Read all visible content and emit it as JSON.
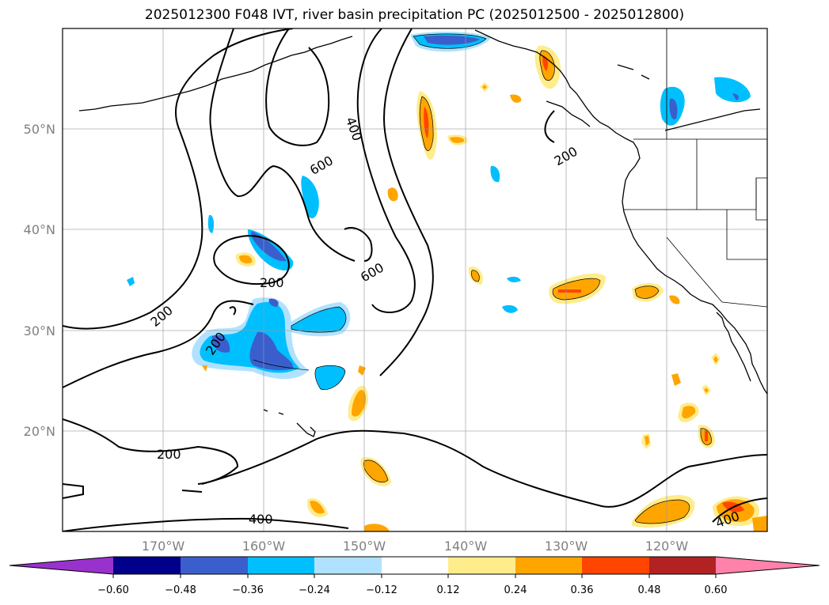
{
  "title": "2025012300 F048 IVT, river basin precipitation PC (2025012500 - 2025012800)",
  "map": {
    "lat_labels": [
      "50°N",
      "40°N",
      "30°N",
      "20°N"
    ],
    "lon_labels": [
      "170°W",
      "160°W",
      "150°W",
      "140°W",
      "130°W",
      "120°W"
    ],
    "contour_labels": [
      "200",
      "400",
      "600",
      "600",
      "200",
      "200",
      "200",
      "200",
      "400",
      "400"
    ]
  },
  "colorbar": {
    "ticks": [
      "−0.60",
      "−0.48",
      "−0.36",
      "−0.24",
      "−0.12",
      "0.12",
      "0.24",
      "0.36",
      "0.48",
      "0.60"
    ],
    "colors": [
      "#9932cc",
      "#00008b",
      "#3a5fcd",
      "#00bfff",
      "#b0e2ff",
      "#ffffff",
      "#ffec8b",
      "#ffa500",
      "#ff4500",
      "#b22222",
      "#ff82ab"
    ]
  }
}
